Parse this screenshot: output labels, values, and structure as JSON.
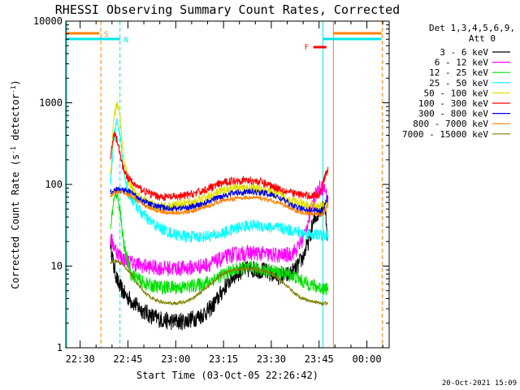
{
  "chart_data": {
    "type": "line",
    "title": "RHESSI Observing Summary Count Rates, Corrected",
    "xlabel": "Start Time (03-Oct-05 22:26:42)",
    "ylabel_main": "Corrected Count Rate (s",
    "ylabel_sup1": "-1",
    "ylabel_mid": " detector",
    "ylabel_sup2": "-1",
    "ylabel_end": ")",
    "y_scale": "log",
    "ylim": [
      1,
      10000
    ],
    "xlim_minutes": [
      -4.5,
      97
    ],
    "x_tick_labels": [
      "22:30",
      "22:45",
      "23:00",
      "23:15",
      "23:30",
      "23:45",
      "00:00"
    ],
    "x_tick_minutes": [
      0,
      15,
      30,
      45,
      60,
      75,
      90
    ],
    "y_tick_labels": [
      "1",
      "10",
      "100",
      "1000",
      "10000"
    ],
    "y_tick_values": [
      1,
      10,
      100,
      1000,
      10000
    ],
    "legend_placement": "outside-right",
    "legend_header": [
      "Det 1,3,4,5,6,9,",
      "Att 0"
    ],
    "timestamp": "20-Oct-2021 15:09",
    "flags": {
      "saa_label": "S",
      "night_label": "N",
      "flare_label": "F",
      "saa_color": "#ff8000",
      "night_color": "#00e8e8",
      "flare_color": "#ff0000",
      "saa_end_min": 6.5,
      "night_end_min": 12.5,
      "night_start_min": 76.2,
      "saa_start_min": 79.5,
      "night_vline_min": -4.2,
      "saa_vline_min": 94.8,
      "flare_min": [
        73.2,
        77.3
      ]
    },
    "series": [
      {
        "name": "3 - 6 keV",
        "color": "#000000",
        "t": [
          9.5,
          10.5,
          12,
          14,
          16,
          18,
          20,
          22,
          24,
          26,
          28,
          30,
          32,
          34,
          36,
          38,
          40,
          42,
          44,
          46,
          48,
          50,
          52,
          54,
          56,
          58,
          60,
          62,
          64,
          66,
          68,
          70,
          72,
          73,
          74,
          75,
          76,
          77,
          77.5
        ],
        "y": [
          20,
          10,
          6,
          4.5,
          3.8,
          3.2,
          2.8,
          2.5,
          2.3,
          2.2,
          2.1,
          2.1,
          2.1,
          2.2,
          2.3,
          2.5,
          2.8,
          3.4,
          4.5,
          6,
          7.5,
          8.5,
          9,
          9.2,
          9,
          8.6,
          8,
          7.5,
          7.5,
          8,
          9.5,
          13,
          22,
          32,
          40,
          48,
          55,
          50,
          24
        ]
      },
      {
        "name": "6 - 12 keV",
        "color": "#ff00ff",
        "t": [
          9.5,
          10.5,
          12,
          14,
          16,
          18,
          20,
          22,
          24,
          26,
          28,
          30,
          32,
          34,
          36,
          38,
          40,
          42,
          44,
          46,
          48,
          50,
          52,
          54,
          56,
          58,
          60,
          62,
          64,
          66,
          68,
          70,
          72,
          73,
          74,
          75,
          76,
          77,
          77.8
        ],
        "y": [
          22,
          18,
          14,
          12,
          11,
          10.5,
          10,
          9.8,
          9.5,
          9.5,
          9.4,
          9.4,
          9.4,
          9.5,
          9.7,
          10,
          10.5,
          11,
          12,
          13,
          13.8,
          14,
          14.3,
          14.5,
          14.3,
          14,
          13.7,
          13.5,
          13.5,
          14,
          16,
          22,
          40,
          60,
          80,
          90,
          92,
          85,
          60
        ]
      },
      {
        "name": "12 - 25 keV",
        "color": "#00e000",
        "t": [
          9.5,
          10.5,
          11.5,
          12.5,
          14,
          16,
          18,
          20,
          22,
          24,
          26,
          28,
          30,
          32,
          34,
          36,
          38,
          40,
          42,
          44,
          46,
          48,
          50,
          52,
          54,
          56,
          58,
          60,
          62,
          64,
          66,
          68,
          70,
          72,
          74,
          76,
          77.8
        ],
        "y": [
          30,
          60,
          80,
          50,
          15,
          8,
          7,
          6.2,
          5.8,
          5.6,
          5.5,
          5.5,
          5.5,
          5.5,
          5.6,
          5.8,
          6,
          6.4,
          7,
          7.6,
          8.2,
          8.8,
          9.2,
          9.4,
          9.4,
          9.2,
          9,
          8.8,
          8.4,
          8.2,
          7.8,
          7.2,
          6.4,
          6,
          5.6,
          5.4,
          5.3
        ]
      },
      {
        "name": "25 - 50 keV",
        "color": "#00ffff",
        "t": [
          9.5,
          10.5,
          11.5,
          12.5,
          13.5,
          15,
          17,
          19,
          21,
          23,
          25,
          27,
          29,
          31,
          33,
          35,
          37,
          39,
          41,
          43,
          45,
          47,
          49,
          51,
          53,
          55,
          57,
          59,
          61,
          63,
          65,
          67,
          69,
          71,
          73,
          75,
          77.8
        ],
        "y": [
          100,
          360,
          560,
          420,
          170,
          80,
          60,
          46,
          38,
          33,
          29,
          27,
          25,
          24,
          23,
          23,
          23,
          23,
          23.5,
          24,
          25.5,
          27,
          29,
          30.5,
          31.5,
          31.5,
          31,
          30,
          29.5,
          29,
          28,
          27,
          26,
          25,
          24.5,
          24,
          23.5
        ]
      },
      {
        "name": "50 - 100 keV",
        "color": "#e0e000",
        "t": [
          9.5,
          10.5,
          11.5,
          12.5,
          13.5,
          15,
          17,
          19,
          21,
          23,
          25,
          27,
          29,
          31,
          33,
          35,
          37,
          39,
          41,
          43,
          45,
          47,
          49,
          51,
          53,
          55,
          57,
          59,
          61,
          63,
          65,
          67,
          69,
          71,
          73,
          75,
          77.8
        ],
        "y": [
          120,
          600,
          1000,
          700,
          250,
          110,
          78,
          66,
          60,
          56,
          54,
          54,
          55,
          56,
          58,
          60,
          63,
          67,
          72,
          78,
          83,
          87,
          89,
          90,
          90,
          89,
          87,
          83,
          78,
          73,
          68,
          62,
          58,
          55,
          54,
          53,
          56
        ]
      },
      {
        "name": "100 - 300 keV",
        "color": "#ff0000",
        "t": [
          9.5,
          10.5,
          11.5,
          12.5,
          13.5,
          15,
          17,
          19,
          21,
          23,
          25,
          27,
          29,
          31,
          33,
          35,
          37,
          39,
          41,
          43,
          45,
          47,
          49,
          51,
          53,
          55,
          57,
          59,
          61,
          63,
          65,
          67,
          69,
          71,
          73,
          75,
          77.8
        ],
        "y": [
          200,
          420,
          360,
          230,
          160,
          120,
          100,
          88,
          80,
          74,
          71,
          70,
          70,
          71,
          73,
          76,
          80,
          85,
          92,
          98,
          105,
          110,
          112,
          113,
          112,
          110,
          106,
          100,
          94,
          88,
          82,
          78,
          75,
          73,
          73,
          75,
          160
        ]
      },
      {
        "name": "300 - 800 keV",
        "color": "#0000e0",
        "t": [
          9.5,
          10.5,
          11.5,
          12.5,
          14,
          16,
          18,
          20,
          22,
          24,
          26,
          28,
          30,
          32,
          34,
          36,
          38,
          40,
          42,
          44,
          46,
          48,
          50,
          52,
          54,
          56,
          58,
          60,
          62,
          64,
          66,
          68,
          70,
          72,
          74,
          76,
          77.8
        ],
        "y": [
          80,
          85,
          86,
          86,
          84,
          80,
          70,
          62,
          57,
          54,
          52,
          51,
          51,
          51.5,
          52,
          54,
          57,
          61,
          66,
          71,
          75,
          78,
          80,
          81,
          81,
          80,
          78,
          75,
          70,
          64,
          57,
          52,
          50,
          49,
          48,
          48,
          70
        ]
      },
      {
        "name": "800 - 7000 keV",
        "color": "#ff8000",
        "t": [
          9.5,
          10.5,
          11.5,
          12.5,
          14,
          16,
          18,
          20,
          22,
          24,
          26,
          28,
          30,
          32,
          34,
          36,
          38,
          40,
          42,
          44,
          46,
          48,
          50,
          52,
          54,
          56,
          58,
          60,
          62,
          64,
          66,
          68,
          70,
          72,
          74,
          76,
          77.8
        ],
        "y": [
          72,
          78,
          80,
          80,
          78,
          72,
          63,
          56,
          51,
          48,
          46,
          45,
          45,
          45.5,
          46,
          48,
          51,
          54,
          58,
          62,
          65,
          67,
          68,
          69,
          69,
          68,
          66,
          63,
          60,
          56,
          51,
          47,
          45,
          44,
          43,
          43,
          55
        ]
      },
      {
        "name": "7000 - 15000 keV",
        "color": "#808000",
        "t": [
          9.5,
          10.5,
          11.5,
          12.5,
          14,
          16,
          18,
          20,
          22,
          24,
          26,
          28,
          30,
          32,
          34,
          36,
          38,
          40,
          42,
          44,
          46,
          48,
          50,
          52,
          54,
          56,
          58,
          60,
          62,
          64,
          66,
          68,
          70,
          72,
          74,
          76,
          77.8
        ],
        "y": [
          11,
          11.5,
          11.5,
          11,
          10,
          8,
          6,
          4.8,
          4.2,
          3.8,
          3.6,
          3.5,
          3.5,
          3.6,
          3.8,
          4.2,
          4.8,
          5.6,
          6.6,
          7.6,
          8.4,
          9,
          9.2,
          9.3,
          9.2,
          9,
          8.6,
          8,
          7.2,
          6.2,
          5.2,
          4.4,
          4,
          3.8,
          3.6,
          3.5,
          3.5
        ]
      }
    ]
  }
}
